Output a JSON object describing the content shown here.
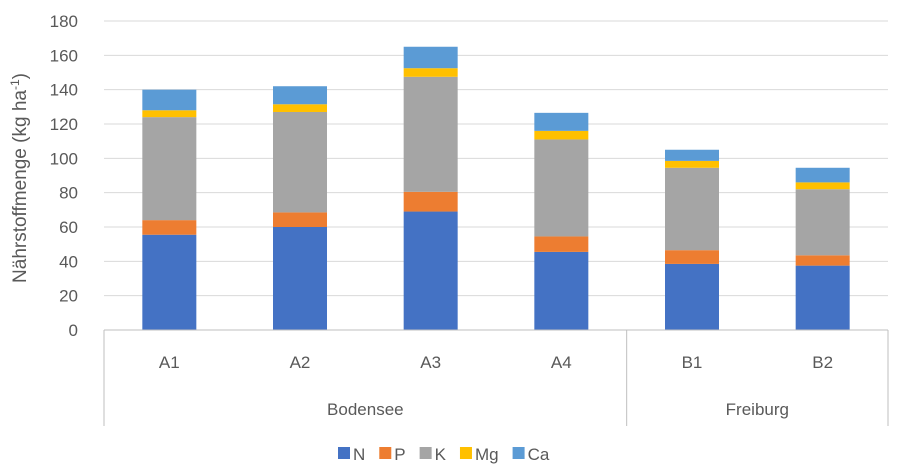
{
  "chart_data": {
    "type": "bar",
    "stacked": true,
    "ylabel": "Nährstoffmenge (kg ha",
    "ylabel_sup": "-1",
    "ylabel_tail": ")",
    "ylim": [
      0,
      180
    ],
    "yticks": [
      0,
      20,
      40,
      60,
      80,
      100,
      120,
      140,
      160,
      180
    ],
    "grid": true,
    "legend_position": "bottom",
    "categories": [
      "A1",
      "A2",
      "A3",
      "A4",
      "B1",
      "B2"
    ],
    "groups": [
      {
        "label": "Bodensee",
        "categories": [
          "A1",
          "A2",
          "A3",
          "A4"
        ]
      },
      {
        "label": "Freiburg",
        "categories": [
          "B1",
          "B2"
        ]
      }
    ],
    "series": [
      {
        "name": "N",
        "color": "#4472C4",
        "values": [
          55.5,
          60,
          69,
          45.5,
          38.5,
          37.5
        ]
      },
      {
        "name": "P",
        "color": "#ED7D31",
        "values": [
          8.5,
          8.5,
          11.5,
          9,
          8,
          6
        ]
      },
      {
        "name": "K",
        "color": "#A5A5A5",
        "values": [
          60,
          58.5,
          67,
          56.5,
          48,
          38.5
        ]
      },
      {
        "name": "Mg",
        "color": "#FFC000",
        "values": [
          4,
          4.5,
          5,
          5,
          4,
          4
        ]
      },
      {
        "name": "Ca",
        "color": "#5B9BD5",
        "values": [
          12,
          10.5,
          12.5,
          10.5,
          6.5,
          8.5
        ]
      }
    ]
  }
}
